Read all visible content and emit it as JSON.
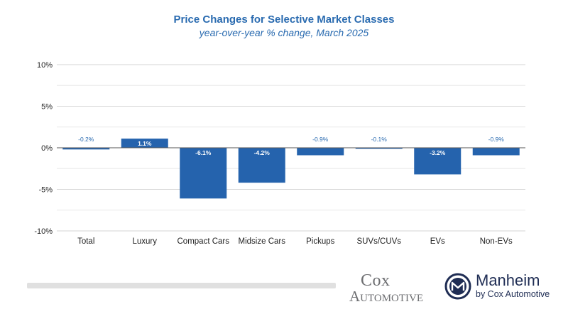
{
  "chart_data": {
    "type": "bar",
    "title": "Price Changes for Selective Market Classes",
    "subtitle": "year-over-year % change, March 2025",
    "categories": [
      "Total",
      "Luxury",
      "Compact Cars",
      "Midsize Cars",
      "Pickups",
      "SUVs/CUVs",
      "EVs",
      "Non-EVs"
    ],
    "values": [
      -0.2,
      1.1,
      -6.1,
      -4.2,
      -0.9,
      -0.1,
      -3.2,
      -0.9
    ],
    "data_labels": [
      "-0.2%",
      "1.1%",
      "-6.1%",
      "-4.2%",
      "-0.9%",
      "-0.1%",
      "-3.2%",
      "-0.9%"
    ],
    "ylim": [
      -10,
      10
    ],
    "yticks": [
      10,
      5,
      0,
      -5,
      -10
    ],
    "ytick_labels": [
      "10%",
      "5%",
      "0%",
      "-5%",
      "-10%"
    ],
    "xlabel": "",
    "ylabel": "",
    "grid": true,
    "bar_color": "#2563ad"
  },
  "footer": {
    "cox_line1": "Cox",
    "cox_line2": "Automotive",
    "manheim_name": "Manheim",
    "manheim_by": "by Cox Automotive",
    "manheim_color": "#1f2d54",
    "cox_color": "#6d6e71"
  }
}
